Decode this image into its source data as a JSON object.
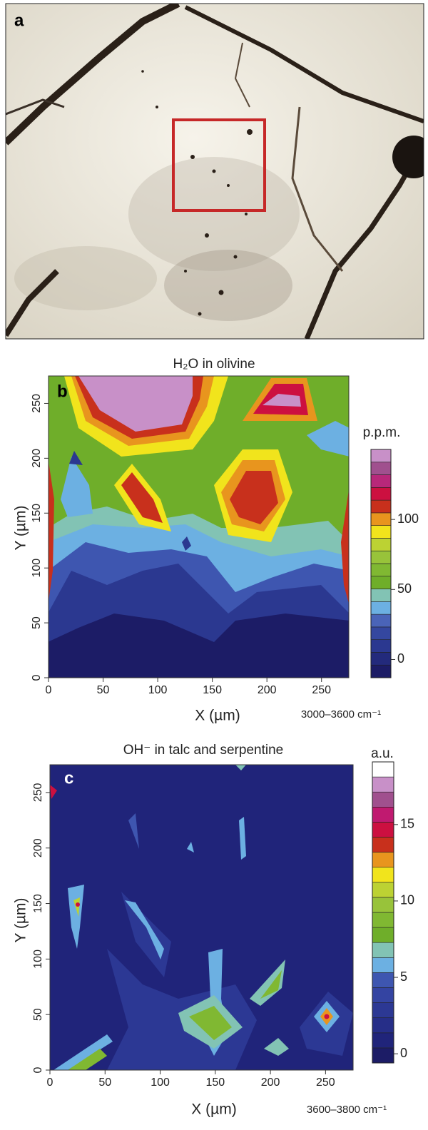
{
  "panels": [
    {
      "label": "a"
    },
    {
      "label": "b",
      "title": "H₂O in olivine",
      "xlabel": "X (µm)",
      "ylabel": "Y (µm)",
      "xlim": [
        0,
        275
      ],
      "ylim": [
        0,
        275
      ],
      "xticks": [
        0,
        50,
        100,
        150,
        200,
        250
      ],
      "yticks": [
        0,
        50,
        100,
        150,
        200,
        250
      ],
      "colorbar": {
        "title": "p.p.m.",
        "note": "3000–3600 cm⁻¹",
        "range": [
          -13,
          150
        ],
        "ticks": [
          0,
          50,
          100
        ],
        "colors": [
          "#1c1c66",
          "#232a7c",
          "#2b3890",
          "#34479f",
          "#4a64b8",
          "#6cb0e2",
          "#82c3b4",
          "#6fae2a",
          "#80b832",
          "#98c33a",
          "#bcd233",
          "#f1e41c",
          "#e8951e",
          "#c8301c",
          "#cc1040",
          "#b8287a",
          "#a0508e",
          "#c890c8"
        ]
      }
    },
    {
      "label": "c",
      "title": "OH⁻ in talc and serpentine",
      "xlabel": "X (µm)",
      "ylabel": "Y (µm)",
      "xlim": [
        0,
        275
      ],
      "ylim": [
        0,
        275
      ],
      "xticks": [
        0,
        50,
        100,
        150,
        200,
        250
      ],
      "yticks": [
        0,
        50,
        100,
        150,
        200,
        250
      ],
      "colorbar": {
        "title": "a.u.",
        "note": "3600–3800 cm⁻¹",
        "range": [
          -0.6,
          19.1
        ],
        "ticks": [
          0,
          5,
          10,
          15
        ],
        "colors": [
          "#1c1c66",
          "#20247a",
          "#262e88",
          "#2c3894",
          "#3444a2",
          "#3e56b0",
          "#6cb0e2",
          "#82c3b4",
          "#6fae2a",
          "#80b832",
          "#98c33a",
          "#bcd233",
          "#f1e41c",
          "#e8951e",
          "#c8301c",
          "#cc1040",
          "#c01a70",
          "#a0508e",
          "#c890c8",
          "#ffffff"
        ]
      }
    }
  ]
}
